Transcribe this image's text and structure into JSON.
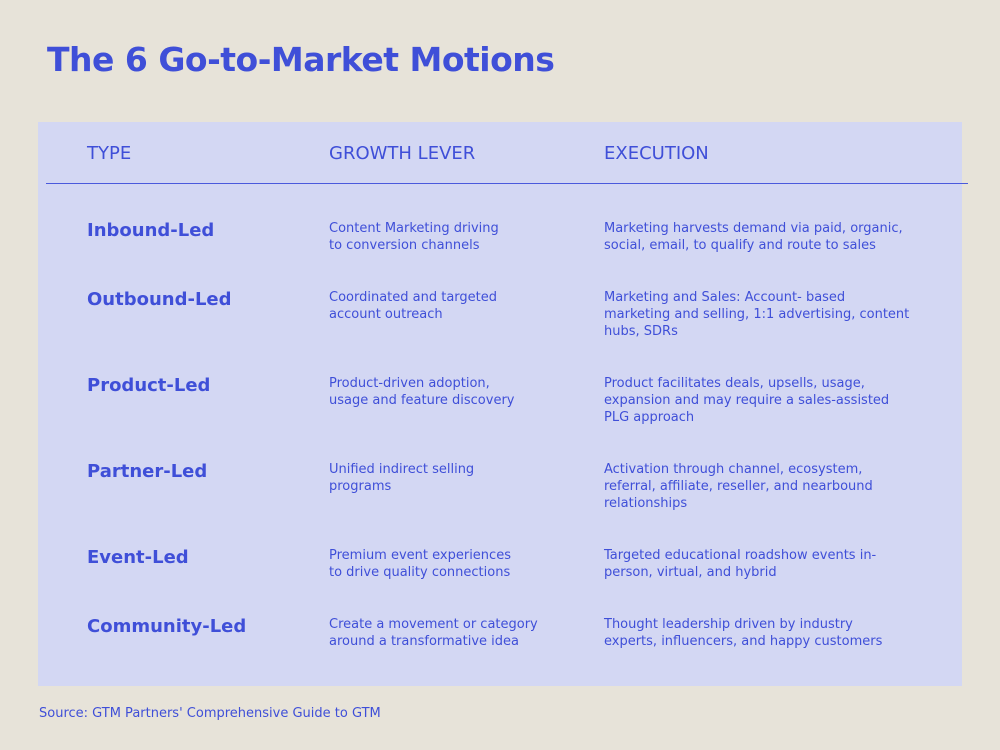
{
  "title": "The 6 Go-to-Market Motions",
  "table": {
    "headers": [
      "TYPE",
      "GROWTH LEVER",
      "EXECUTION"
    ],
    "rows": [
      {
        "type": "Inbound-Led",
        "growth_lever": [
          "Content Marketing driving",
          "to conversion channels"
        ],
        "execution": [
          "Marketing harvests demand via paid, organic,",
          "social, email, to qualify and route to sales"
        ]
      },
      {
        "type": "Outbound-Led",
        "growth_lever": [
          "Coordinated and targeted",
          "account outreach"
        ],
        "execution": [
          "Marketing and Sales: Account- based",
          "marketing and selling, 1:1 advertising, content",
          "hubs, SDRs"
        ]
      },
      {
        "type": "Product-Led",
        "growth_lever": [
          "Product-driven adoption,",
          "usage and feature discovery"
        ],
        "execution": [
          "Product facilitates deals, upsells, usage,",
          "expansion and may require a sales-assisted",
          "PLG approach"
        ]
      },
      {
        "type": "Partner-Led",
        "growth_lever": [
          "Unified indirect selling",
          "programs"
        ],
        "execution": [
          "Activation through channel, ecosystem,",
          "referral, affiliate, reseller, and nearbound",
          "relationships"
        ]
      },
      {
        "type": "Event-Led",
        "growth_lever": [
          "Premium event experiences",
          "to drive quality connections"
        ],
        "execution": [
          "Targeted educational roadshow events in-",
          "person, virtual, and hybrid"
        ]
      },
      {
        "type": "Community-Led",
        "growth_lever": [
          "Create a movement or category",
          "around a transformative idea"
        ],
        "execution": [
          "Thought leadership driven by industry",
          "experts, influencers, and happy customers"
        ]
      }
    ]
  },
  "source": "Source: GTM Partners' Comprehensive Guide to GTM"
}
